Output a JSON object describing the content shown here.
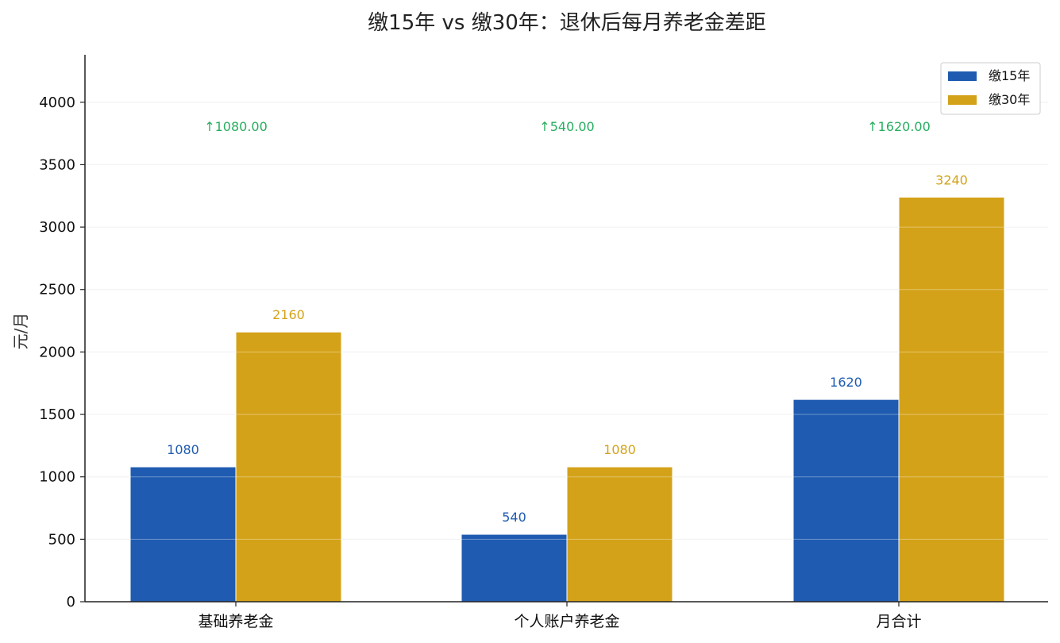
{
  "chart_data": {
    "type": "bar",
    "title": "缴15年 vs 缴30年：退休后每月养老金差距",
    "xlabel": "",
    "ylabel": "元/月",
    "ylim": [
      0,
      4380
    ],
    "yticks": [
      0,
      500,
      1000,
      1500,
      2000,
      2500,
      3000,
      3500,
      4000
    ],
    "categories": [
      "基础养老金",
      "个人账户养老金",
      "月合计"
    ],
    "series": [
      {
        "name": "缴15年",
        "values": [
          1080,
          540,
          1620
        ],
        "labels": [
          "1080",
          "540",
          "1620"
        ],
        "color": "#1f5bb0"
      },
      {
        "name": "缴30年",
        "values": [
          2160,
          1080,
          3240
        ],
        "labels": [
          "2160",
          "1080",
          "3240"
        ],
        "color": "#d4a219"
      }
    ],
    "annotations": [
      "↑1080.00",
      "↑540.00",
      "↑1620.00"
    ],
    "annotation_color": "#27ae60",
    "grid": true,
    "legend_position": "top-right"
  }
}
